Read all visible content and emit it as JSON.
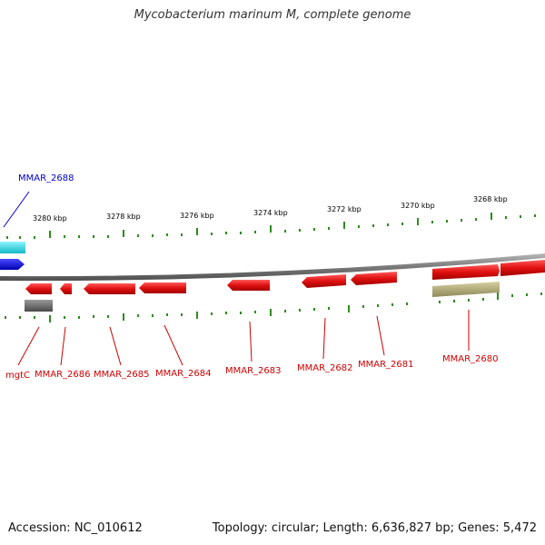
{
  "header": {
    "title": "Mycobacterium marinum M, complete genome"
  },
  "footer": {
    "accession": "Accession: NC_010612",
    "summary": "Topology: circular; Length: 6,636,827 bp; Genes: 5,472"
  },
  "colors": {
    "backbone": "#8c8c8c",
    "tick": "#2e8b1e",
    "forward_gene": "#dd1111",
    "reverse_gene": "#dd1111",
    "highlight_gene": "#1111dd",
    "feature_cyan": "#22d6e0",
    "feature_gray": "#6e6e6e",
    "feature_khaki": "#b7b07a",
    "label_red": "#cc0000",
    "label_blue": "#0000cc"
  },
  "ruler": {
    "unit": "kbp",
    "labels": [
      "3280 kbp",
      "3278 kbp",
      "3276 kbp",
      "3274 kbp",
      "3272 kbp",
      "3270 kbp",
      "3268 kbp"
    ]
  },
  "genes": [
    {
      "label": "mgtC",
      "color": "label_red"
    },
    {
      "label": "MMAR_2686",
      "color": "label_red"
    },
    {
      "label": "MMAR_2685",
      "color": "label_red"
    },
    {
      "label": "MMAR_2684",
      "color": "label_red"
    },
    {
      "label": "MMAR_2683",
      "color": "label_red"
    },
    {
      "label": "MMAR_2682",
      "color": "label_red"
    },
    {
      "label": "MMAR_2681",
      "color": "label_red"
    },
    {
      "label": "MMAR_2680",
      "color": "label_red"
    },
    {
      "label": "MMAR_2688",
      "color": "label_blue"
    }
  ]
}
